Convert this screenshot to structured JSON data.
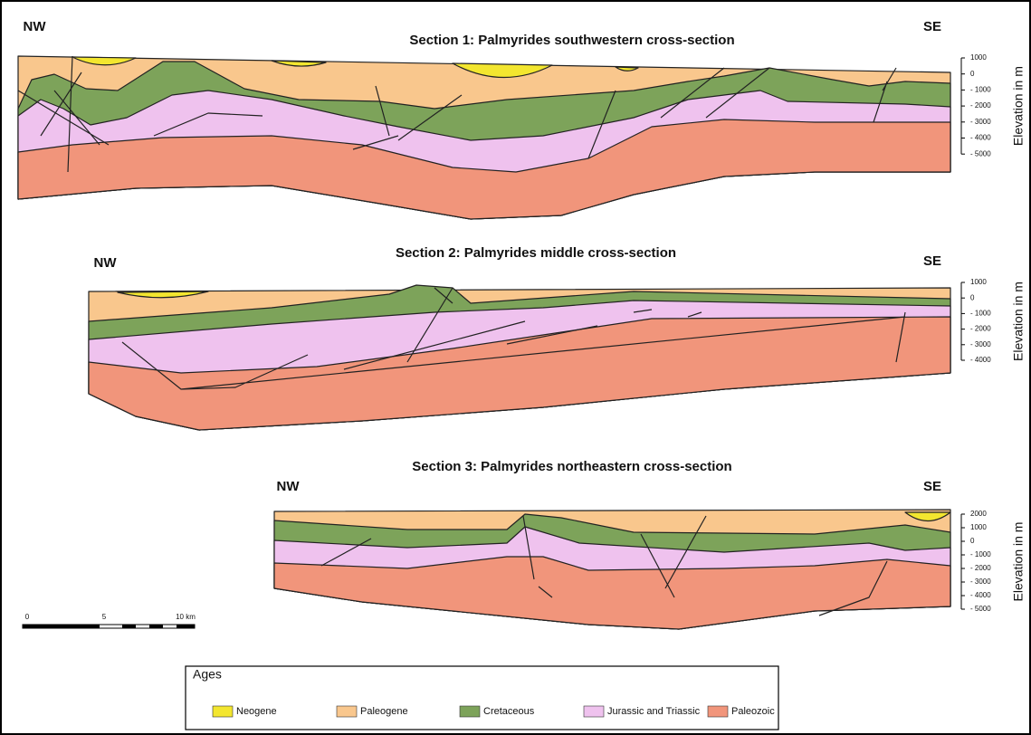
{
  "sections": [
    {
      "title": "Section 1: Palmyrides southwestern cross-section",
      "left": "NW",
      "right": "SE",
      "axis_label": "Elevation in m",
      "ticks": [
        "1000",
        "0",
        "- 1000",
        "- 2000",
        "- 3000",
        "- 4000",
        "- 5000"
      ]
    },
    {
      "title": "Section 2: Palmyrides middle cross-section",
      "left": "NW",
      "right": "SE",
      "axis_label": "Elevation in m",
      "ticks": [
        "1000",
        "0",
        "- 1000",
        "- 2000",
        "- 3000",
        "- 4000"
      ]
    },
    {
      "title": "Section 3: Palmyrides northeastern cross-section",
      "left": "NW",
      "right": "SE",
      "axis_label": "Elevation in m",
      "ticks": [
        "2000",
        "1000",
        "0",
        "- 1000",
        "- 2000",
        "- 3000",
        "- 4000",
        "- 5000"
      ]
    }
  ],
  "scale_bar": {
    "labels": [
      "0",
      "5",
      "10 km"
    ]
  },
  "legend": {
    "title": "Ages",
    "items": [
      "Neogene",
      "Paleogene",
      "Cretaceous",
      "Jurassic and Triassic",
      "Paleozoic"
    ]
  }
}
